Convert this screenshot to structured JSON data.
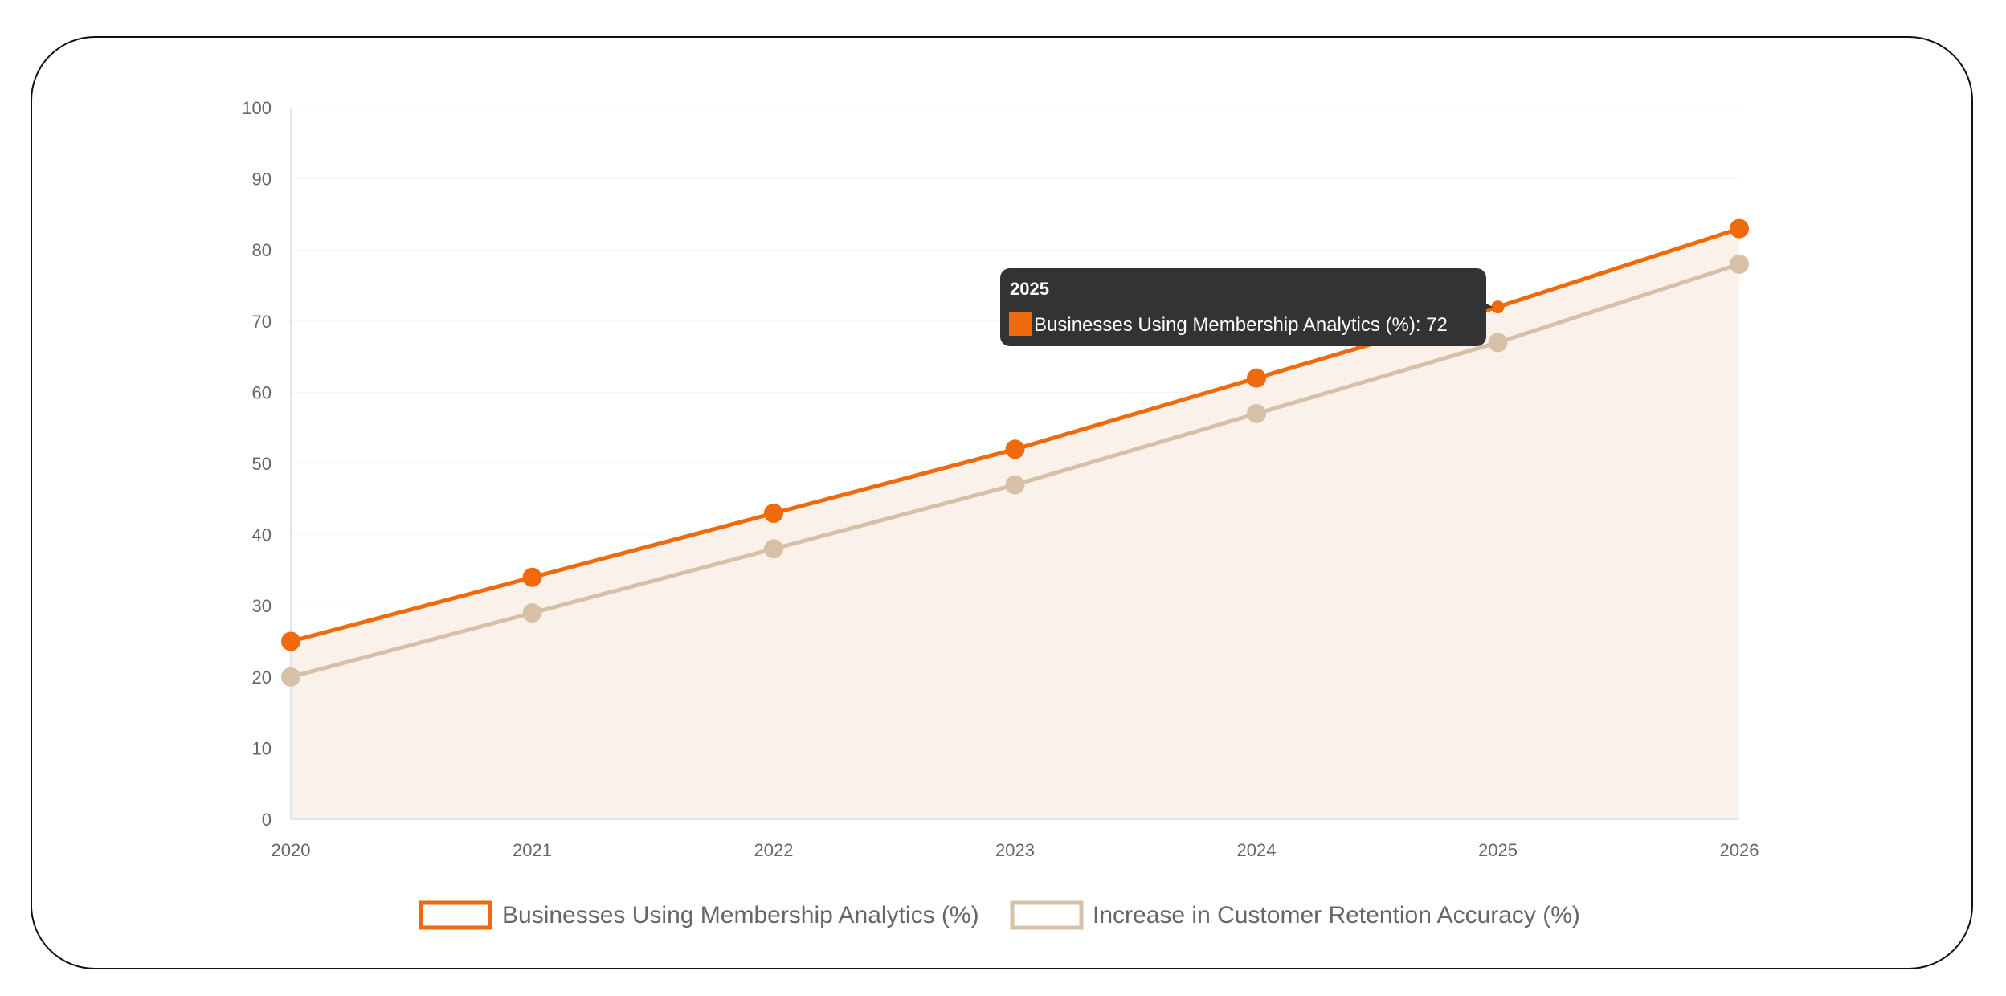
{
  "chart_data": {
    "type": "line",
    "categories": [
      "2020",
      "2021",
      "2022",
      "2023",
      "2024",
      "2025",
      "2026"
    ],
    "series": [
      {
        "name": "Businesses Using Membership Analytics (%)",
        "values": [
          25,
          34,
          43,
          52,
          62,
          72,
          83
        ],
        "color": "#EE6A0C"
      },
      {
        "name": "Increase in Customer Retention Accuracy (%)",
        "values": [
          20,
          29,
          38,
          47,
          57,
          67,
          78
        ],
        "color": "#D7C0A8"
      }
    ],
    "yticks": [
      "0",
      "10",
      "20",
      "30",
      "40",
      "50",
      "60",
      "70",
      "80",
      "90",
      "100"
    ],
    "ylim": [
      0,
      100
    ],
    "grid": true,
    "legend_position": "bottom",
    "area_fill_color": "#FBF1EB",
    "tooltip": {
      "title": "2025",
      "label": "Businesses Using Membership Analytics (%): 72"
    }
  }
}
